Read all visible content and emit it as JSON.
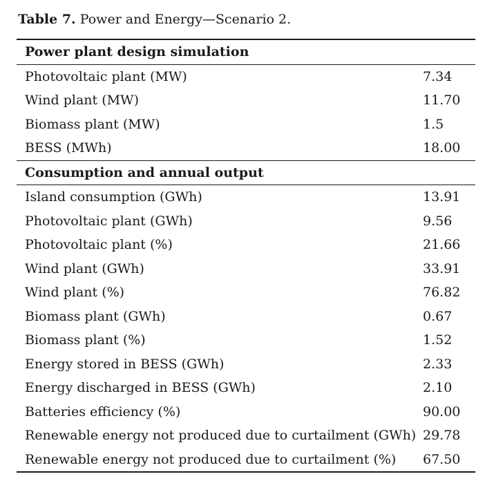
{
  "caption": {
    "label": "Table 7.",
    "text": " Power and Energy—Scenario 2."
  },
  "sections": [
    {
      "title": "Power plant design simulation",
      "rows": [
        {
          "name": "Photovoltaic plant (MW)",
          "value": "7.34"
        },
        {
          "name": "Wind plant (MW)",
          "value": "11.70"
        },
        {
          "name": "Biomass plant (MW)",
          "value": "1.5"
        },
        {
          "name": "BESS (MWh)",
          "value": "18.00"
        }
      ]
    },
    {
      "title": "Consumption and annual output",
      "rows": [
        {
          "name": "Island consumption (GWh)",
          "value": "13.91"
        },
        {
          "name": "Photovoltaic plant (GWh)",
          "value": "9.56"
        },
        {
          "name": "Photovoltaic plant (%)",
          "value": "21.66"
        },
        {
          "name": "Wind plant (GWh)",
          "value": "33.91"
        },
        {
          "name": "Wind plant (%)",
          "value": "76.82"
        },
        {
          "name": "Biomass plant (GWh)",
          "value": "0.67"
        },
        {
          "name": "Biomass plant (%)",
          "value": "1.52"
        },
        {
          "name": "Energy stored in BESS (GWh)",
          "value": "2.33"
        },
        {
          "name": "Energy discharged in BESS (GWh)",
          "value": "2.10"
        },
        {
          "name": "Batteries efficiency (%)",
          "value": "90.00"
        },
        {
          "name": "Renewable energy not produced due to curtailment (GWh)",
          "value": "29.78"
        },
        {
          "name": "Renewable energy not produced due to curtailment (%)",
          "value": "67.50"
        }
      ]
    }
  ]
}
